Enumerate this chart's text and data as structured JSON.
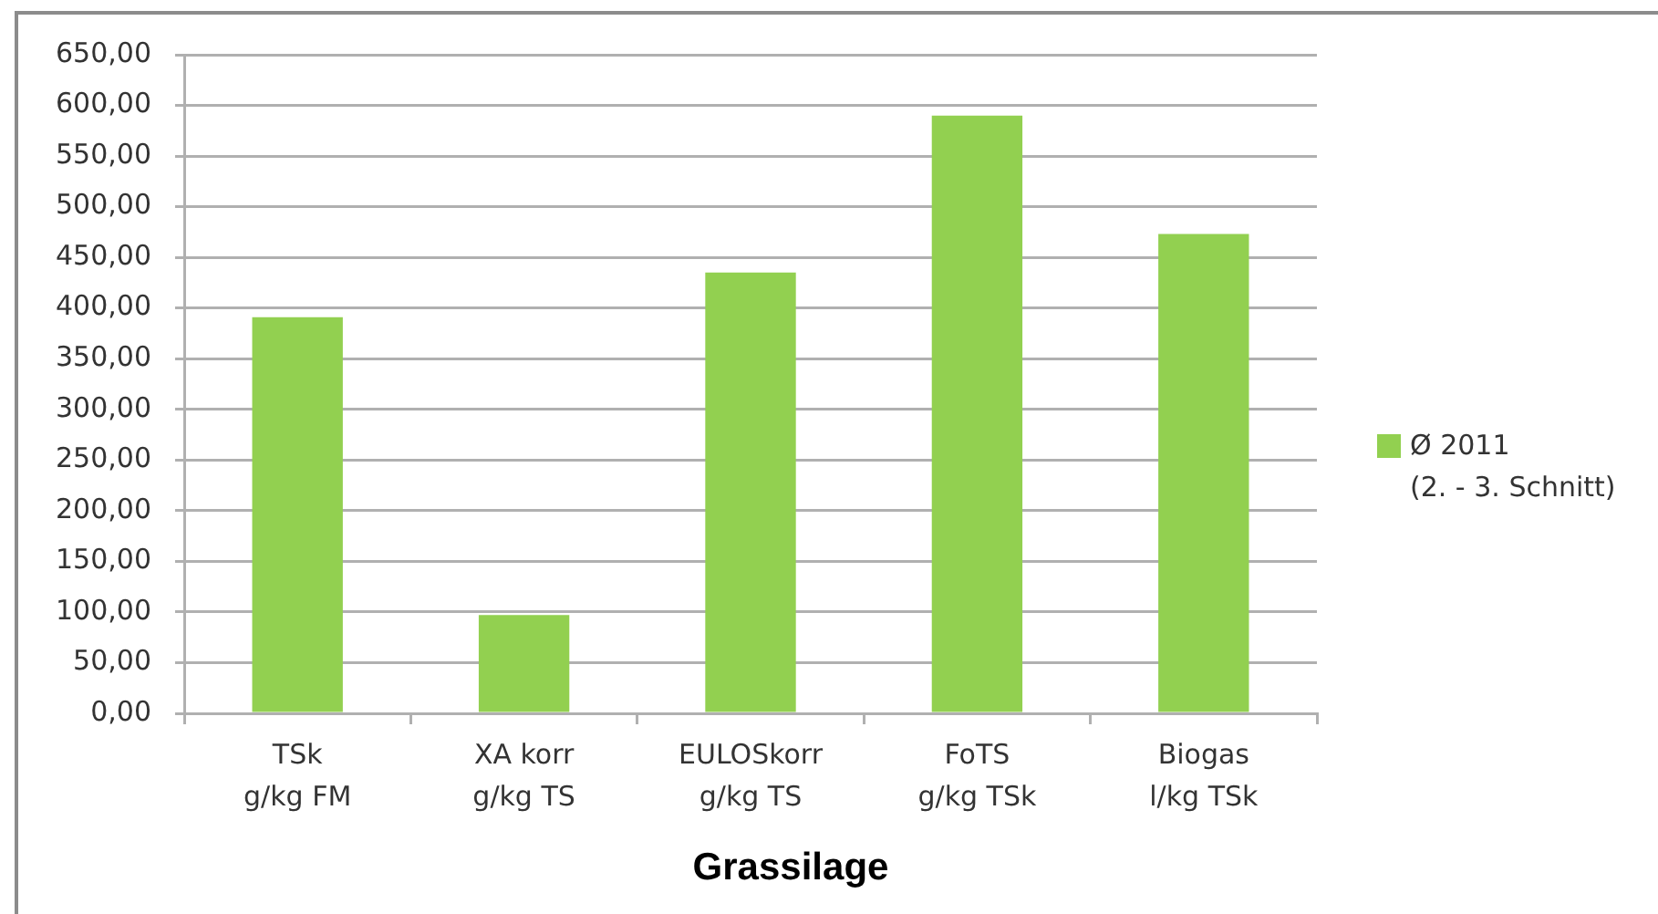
{
  "chart_data": {
    "type": "bar",
    "xlabel": "Grassilage",
    "categories": [
      "TSk\ng/kg FM",
      "XA korr\ng/kg TS",
      "EULOSkorr\ng/kg TS",
      "FoTS\ng/kg TSk",
      "Biogas\nl/kg TSk"
    ],
    "series": [
      {
        "name": "Ø 2011\n(2. - 3. Schnitt)",
        "color": "#92d050",
        "values": [
          391,
          97,
          435,
          590,
          473
        ]
      }
    ],
    "ylim": [
      0,
      650
    ],
    "yticks": [
      {
        "value": 0,
        "label": "0,00"
      },
      {
        "value": 50,
        "label": "50,00"
      },
      {
        "value": 100,
        "label": "100,00"
      },
      {
        "value": 150,
        "label": "150,00"
      },
      {
        "value": 200,
        "label": "200,00"
      },
      {
        "value": 250,
        "label": "250,00"
      },
      {
        "value": 300,
        "label": "300,00"
      },
      {
        "value": 350,
        "label": "350,00"
      },
      {
        "value": 400,
        "label": "400,00"
      },
      {
        "value": 450,
        "label": "450,00"
      },
      {
        "value": 500,
        "label": "500,00"
      },
      {
        "value": 550,
        "label": "550,00"
      },
      {
        "value": 600,
        "label": "600,00"
      },
      {
        "value": 650,
        "label": "650,00"
      }
    ],
    "grid": "y",
    "legend": "right"
  }
}
